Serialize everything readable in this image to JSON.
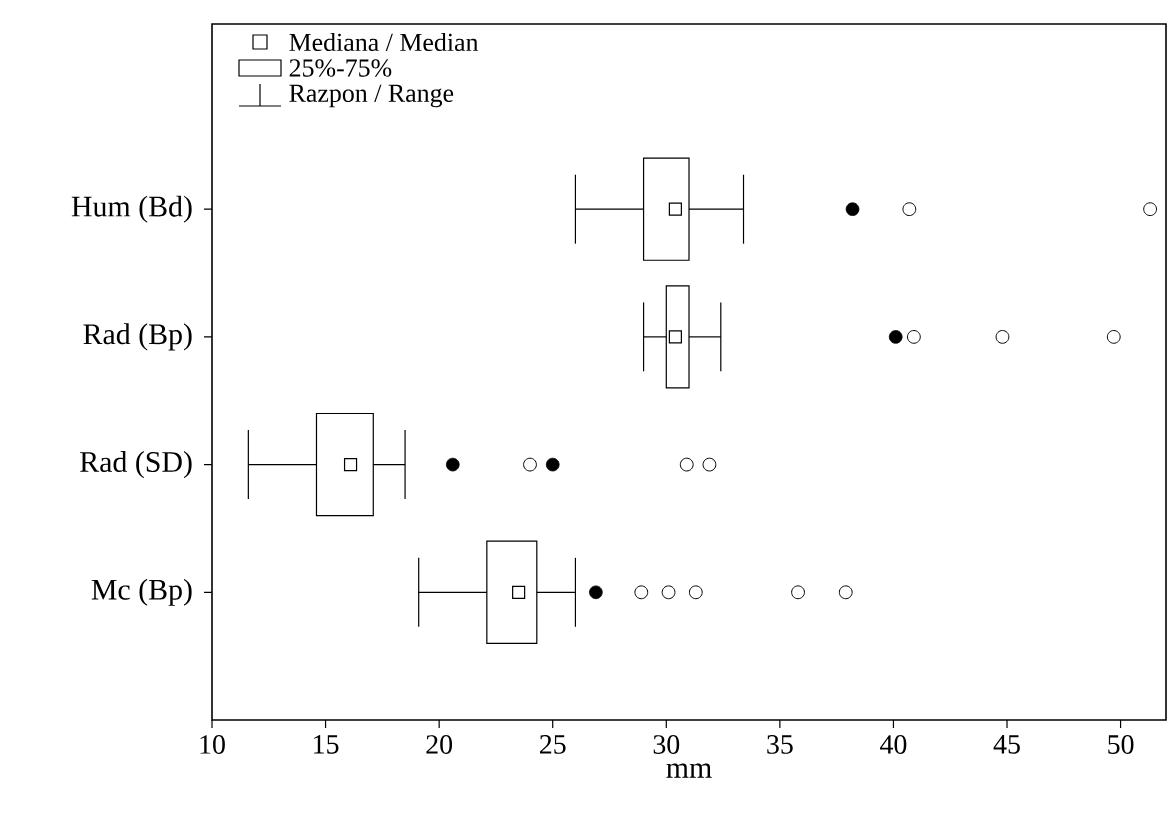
{
  "chart_data": {
    "type": "box",
    "orientation": "horizontal",
    "xlabel": "mm",
    "categories": [
      "Hum (Bd)",
      "Rad (Bp)",
      "Rad (SD)",
      "Mc (Bp)"
    ],
    "boxes": [
      {
        "low": 26.0,
        "q1": 29.0,
        "median": 30.4,
        "q3": 31.0,
        "high": 33.4,
        "outliers": [
          40.7,
          51.3
        ]
      },
      {
        "low": 29.0,
        "q1": 30.0,
        "median": 30.4,
        "q3": 31.0,
        "high": 32.4,
        "outliers": [
          40.9,
          44.8,
          49.7
        ]
      },
      {
        "low": 11.6,
        "q1": 14.6,
        "median": 16.1,
        "q3": 17.1,
        "high": 18.5,
        "outliers": [
          24.0,
          30.9,
          31.9
        ]
      },
      {
        "low": 19.1,
        "q1": 22.1,
        "median": 23.5,
        "q3": 24.3,
        "high": 26.0,
        "outliers": [
          28.9,
          30.1,
          31.3,
          35.8,
          37.9
        ]
      }
    ],
    "series": [
      {
        "type": "scatter",
        "color": "#000000",
        "x": [
          "Hum (Bd)",
          "Rad (Bp)",
          "Rad (SD)",
          "Rad (SD)",
          "Mc (Bp)"
        ],
        "values": [
          38.2,
          40.1,
          20.6,
          25.0,
          26.9
        ]
      }
    ],
    "xlim": [
      10,
      52
    ],
    "xticks": [
      10,
      15,
      20,
      25,
      30,
      35,
      40,
      45,
      50
    ],
    "annotations": [
      "Mediana / Median",
      "25%-75%",
      "Razpon / Range"
    ]
  }
}
